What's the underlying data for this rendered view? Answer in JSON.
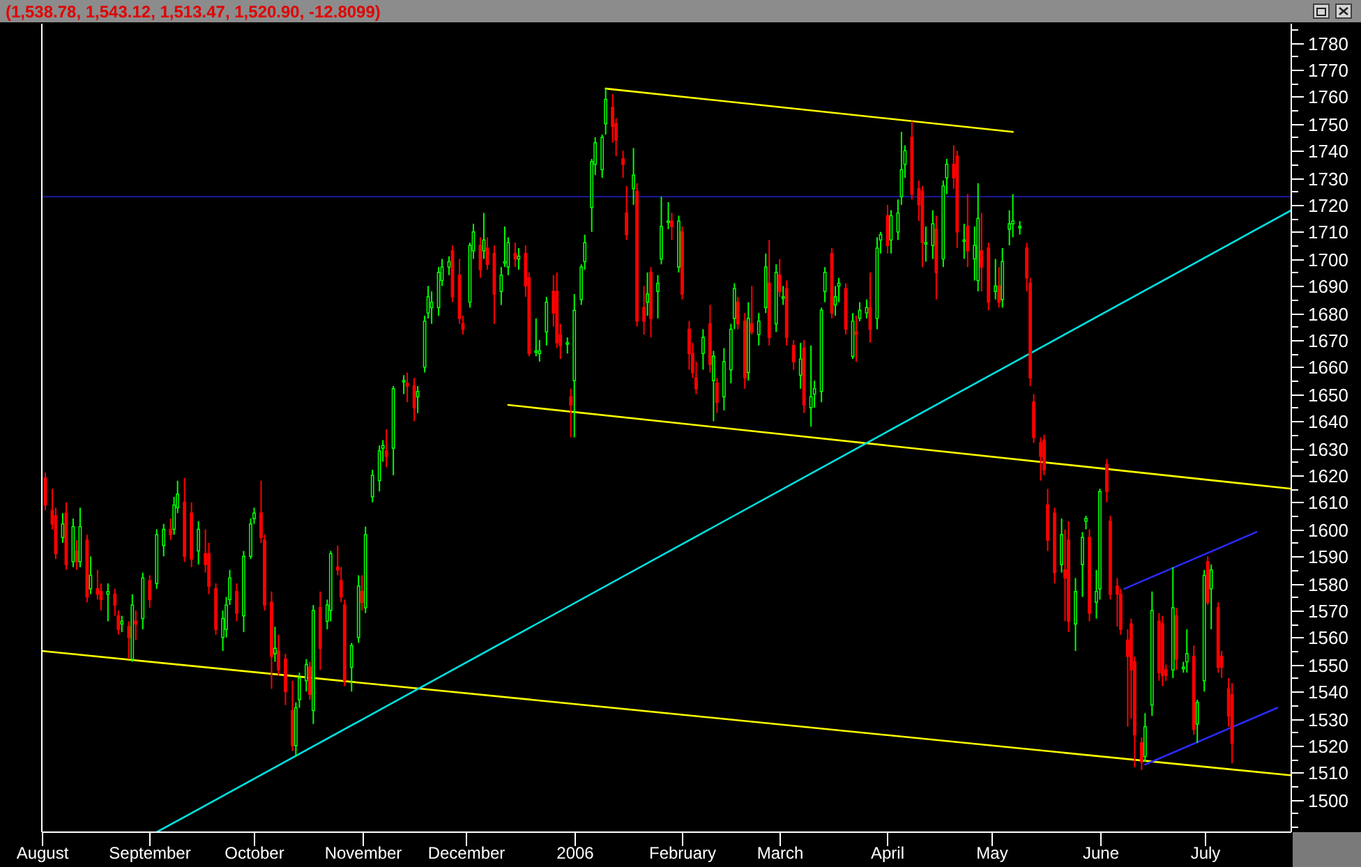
{
  "chart_data": {
    "type": "candlestick",
    "title": "(1,538.78, 1,543.12, 1,513.47, 1,520.90, -12.8099)",
    "xlim": [
      "2005-08-01",
      "2006-07-26"
    ],
    "xticks": [
      {
        "value": "2005-08-01",
        "label": "August"
      },
      {
        "value": "2005-09-01",
        "label": "September"
      },
      {
        "value": "2005-10-01",
        "label": "October"
      },
      {
        "value": "2005-11-01",
        "label": "November"
      },
      {
        "value": "2005-12-01",
        "label": "December"
      },
      {
        "value": "2006-01-01",
        "label": "2006"
      },
      {
        "value": "2006-02-01",
        "label": "February"
      },
      {
        "value": "2006-03-01",
        "label": "March"
      },
      {
        "value": "2006-04-01",
        "label": "April"
      },
      {
        "value": "2006-05-01",
        "label": "May"
      },
      {
        "value": "2006-06-01",
        "label": "June"
      },
      {
        "value": "2006-07-01",
        "label": "July"
      }
    ],
    "ylim": [
      1488,
      1787
    ],
    "yticks": [
      {
        "value": 1490,
        "label": null
      },
      {
        "value": 1495,
        "label": null
      },
      1500,
      {
        "value": 1505,
        "label": null
      },
      1510,
      {
        "value": 1515,
        "label": null
      },
      1520,
      {
        "value": 1525,
        "label": null
      },
      1530,
      {
        "value": 1535,
        "label": null
      },
      1540,
      {
        "value": 1545,
        "label": null
      },
      1550,
      {
        "value": 1555,
        "label": null
      },
      1560,
      {
        "value": 1565,
        "label": null
      },
      1570,
      {
        "value": 1575,
        "label": null
      },
      1580,
      {
        "value": 1585,
        "label": null
      },
      1590,
      {
        "value": 1595,
        "label": null
      },
      1600,
      {
        "value": 1605,
        "label": null
      },
      1610,
      {
        "value": 1615,
        "label": null
      },
      1620,
      {
        "value": 1625,
        "label": null
      },
      1630,
      {
        "value": 1635,
        "label": null
      },
      1640,
      {
        "value": 1645,
        "label": null
      },
      1650,
      {
        "value": 1655,
        "label": null
      },
      1660,
      {
        "value": 1665,
        "label": null
      },
      1670,
      {
        "value": 1675,
        "label": null
      },
      1680,
      {
        "value": 1685,
        "label": null
      },
      1690,
      {
        "value": 1695,
        "label": null
      },
      1700,
      {
        "value": 1705,
        "label": null
      },
      1710,
      {
        "value": 1715,
        "label": null
      },
      1720,
      {
        "value": 1725,
        "label": null
      },
      1730,
      {
        "value": 1735,
        "label": null
      },
      1740,
      {
        "value": 1745,
        "label": null
      },
      1750,
      {
        "value": 1755,
        "label": null
      },
      1760,
      {
        "value": 1765,
        "label": null
      },
      1770,
      {
        "value": 1775,
        "label": null
      },
      1780,
      {
        "value": 1785,
        "label": null
      }
    ],
    "x": [
      "2005-08-02",
      "2005-08-04",
      "2005-08-05",
      "2005-08-07",
      "2005-08-08",
      "2005-08-10",
      "2005-08-11",
      "2005-08-12",
      "2005-08-14",
      "2005-08-15",
      "2005-08-17",
      "2005-08-18",
      "2005-08-20",
      "2005-08-22",
      "2005-08-23",
      "2005-08-24",
      "2005-08-26",
      "2005-08-27",
      "2005-08-28",
      "2005-08-30",
      "2005-09-01",
      "2005-09-03",
      "2005-09-05",
      "2005-09-07",
      "2005-09-08",
      "2005-09-09",
      "2005-09-11",
      "2005-09-13",
      "2005-09-15",
      "2005-09-17",
      "2005-09-18",
      "2005-09-20",
      "2005-09-22",
      "2005-09-23",
      "2005-09-24",
      "2005-09-26",
      "2005-09-28",
      "2005-09-30",
      "2005-10-01",
      "2005-10-03",
      "2005-10-04",
      "2005-10-06",
      "2005-10-07",
      "2005-10-08",
      "2005-10-10",
      "2005-10-12",
      "2005-10-13",
      "2005-10-14",
      "2005-10-16",
      "2005-10-17",
      "2005-10-18",
      "2005-10-20",
      "2005-10-22",
      "2005-10-23",
      "2005-10-25",
      "2005-10-26",
      "2005-10-27",
      "2005-10-29",
      "2005-10-31",
      "2005-11-01",
      "2005-11-02",
      "2005-11-04",
      "2005-11-06",
      "2005-11-07",
      "2005-11-08",
      "2005-11-10",
      "2005-11-13",
      "2005-11-14",
      "2005-11-16",
      "2005-11-17",
      "2005-11-19",
      "2005-11-20",
      "2005-11-21",
      "2005-11-23",
      "2005-11-24",
      "2005-11-26",
      "2005-11-27",
      "2005-11-29",
      "2005-11-30",
      "2005-12-02",
      "2005-12-03",
      "2005-12-05",
      "2005-12-06",
      "2005-12-07",
      "2005-12-09",
      "2005-12-11",
      "2005-12-12",
      "2005-12-13",
      "2005-12-15",
      "2005-12-16",
      "2005-12-18",
      "2005-12-19",
      "2005-12-21",
      "2005-12-22",
      "2005-12-24",
      "2005-12-26",
      "2005-12-27",
      "2005-12-28",
      "2005-12-30",
      "2005-12-31",
      "2006-01-01",
      "2006-01-03",
      "2006-01-04",
      "2006-01-06",
      "2006-01-07",
      "2006-01-09",
      "2006-01-10",
      "2006-01-12",
      "2006-01-13",
      "2006-01-15",
      "2006-01-16",
      "2006-01-18",
      "2006-01-19",
      "2006-01-21",
      "2006-01-22",
      "2006-01-23",
      "2006-01-25",
      "2006-01-26",
      "2006-01-28",
      "2006-01-29",
      "2006-01-31",
      "2006-02-01",
      "2006-02-03",
      "2006-02-04",
      "2006-02-05",
      "2006-02-07",
      "2006-02-09",
      "2006-02-10",
      "2006-02-11",
      "2006-02-13",
      "2006-02-15",
      "2006-02-16",
      "2006-02-17",
      "2006-02-19",
      "2006-02-20",
      "2006-02-21",
      "2006-02-23",
      "2006-02-25",
      "2006-02-26",
      "2006-02-28",
      "2006-03-01",
      "2006-03-02",
      "2006-03-03",
      "2006-03-05",
      "2006-03-07",
      "2006-03-08",
      "2006-03-10",
      "2006-03-11",
      "2006-03-13",
      "2006-03-14",
      "2006-03-16",
      "2006-03-17",
      "2006-03-18",
      "2006-03-20",
      "2006-03-22",
      "2006-03-23",
      "2006-03-24",
      "2006-03-26",
      "2006-03-27",
      "2006-03-29",
      "2006-03-30",
      "2006-04-01",
      "2006-04-02",
      "2006-04-04",
      "2006-04-05",
      "2006-04-06",
      "2006-04-08",
      "2006-04-10",
      "2006-04-11",
      "2006-04-12",
      "2006-04-14",
      "2006-04-15",
      "2006-04-17",
      "2006-04-18",
      "2006-04-20",
      "2006-04-21",
      "2006-04-23",
      "2006-04-24",
      "2006-04-26",
      "2006-04-27",
      "2006-04-28",
      "2006-04-30",
      "2006-05-02",
      "2006-05-03",
      "2006-05-04",
      "2006-05-06",
      "2006-05-07",
      "2006-05-09",
      "2006-05-11",
      "2006-05-12",
      "2006-05-13",
      "2006-05-15",
      "2006-05-16",
      "2006-05-17",
      "2006-05-19",
      "2006-05-21",
      "2006-05-22",
      "2006-05-23",
      "2006-05-25",
      "2006-05-27",
      "2006-05-28",
      "2006-05-29",
      "2006-05-31",
      "2006-06-01",
      "2006-06-03",
      "2006-06-04",
      "2006-06-06",
      "2006-06-07",
      "2006-06-09",
      "2006-06-10",
      "2006-06-11",
      "2006-06-13",
      "2006-06-14",
      "2006-06-16",
      "2006-06-18",
      "2006-06-19",
      "2006-06-20",
      "2006-06-22",
      "2006-06-23",
      "2006-06-25",
      "2006-06-26",
      "2006-06-28",
      "2006-06-29",
      "2006-07-01",
      "2006-07-02",
      "2006-07-03",
      "2006-07-05",
      "2006-07-06",
      "2006-07-08",
      "2006-07-09"
    ],
    "ohlc": [
      [
        1619,
        1621,
        1607,
        1609
      ],
      [
        1607,
        1615,
        1600,
        1602
      ],
      [
        1605,
        1608,
        1589,
        1591
      ],
      [
        1597,
        1606,
        1595,
        1602
      ],
      [
        1606,
        1610,
        1585,
        1587
      ],
      [
        1588,
        1604,
        1586,
        1601
      ],
      [
        1592,
        1596,
        1585,
        1588
      ],
      [
        1588,
        1608,
        1586,
        1601
      ],
      [
        1596,
        1598,
        1573,
        1575
      ],
      [
        1578,
        1590,
        1576,
        1583
      ],
      [
        1578,
        1585,
        1574,
        1576
      ],
      [
        1577,
        1580,
        1570,
        1574
      ],
      [
        1576,
        1580,
        1566,
        1577
      ],
      [
        1576,
        1578,
        1568,
        1572
      ],
      [
        1568,
        1570,
        1561,
        1563
      ],
      [
        1565,
        1568,
        1562,
        1566
      ],
      [
        1564,
        1566,
        1552,
        1560
      ],
      [
        1552,
        1576,
        1551,
        1572
      ],
      [
        1566,
        1570,
        1559,
        1565
      ],
      [
        1567,
        1584,
        1563,
        1582
      ],
      [
        1581,
        1583,
        1571,
        1574
      ],
      [
        1580,
        1600,
        1578,
        1598
      ],
      [
        1594,
        1602,
        1590,
        1600
      ],
      [
        1600,
        1604,
        1596,
        1598
      ],
      [
        1600,
        1612,
        1598,
        1609
      ],
      [
        1608,
        1618,
        1606,
        1613
      ],
      [
        1610,
        1619,
        1588,
        1590
      ],
      [
        1606,
        1610,
        1586,
        1589
      ],
      [
        1592,
        1603,
        1587,
        1600
      ],
      [
        1591,
        1600,
        1584,
        1587
      ],
      [
        1591,
        1595,
        1576,
        1579
      ],
      [
        1578,
        1580,
        1561,
        1563
      ],
      [
        1560,
        1570,
        1555,
        1567
      ],
      [
        1563,
        1575,
        1560,
        1572
      ],
      [
        1574,
        1585,
        1572,
        1582
      ],
      [
        1577,
        1580,
        1566,
        1569
      ],
      [
        1568,
        1592,
        1562,
        1590
      ],
      [
        1590,
        1604,
        1589,
        1602
      ],
      [
        1604,
        1608,
        1602,
        1606
      ],
      [
        1606,
        1618,
        1595,
        1597
      ],
      [
        1596,
        1598,
        1570,
        1572
      ],
      [
        1573,
        1577,
        1541,
        1553
      ],
      [
        1554,
        1564,
        1551,
        1556
      ],
      [
        1555,
        1561,
        1546,
        1548
      ],
      [
        1552,
        1554,
        1535,
        1540
      ],
      [
        1533,
        1544,
        1518,
        1520
      ],
      [
        1520,
        1536,
        1516,
        1534
      ],
      [
        1537,
        1547,
        1534,
        1545
      ],
      [
        1544,
        1552,
        1540,
        1550
      ],
      [
        1549,
        1551,
        1537,
        1539
      ],
      [
        1533,
        1572,
        1528,
        1570
      ],
      [
        1571,
        1577,
        1548,
        1556
      ],
      [
        1566,
        1574,
        1563,
        1572
      ],
      [
        1570,
        1592,
        1566,
        1591
      ],
      [
        1586,
        1594,
        1583,
        1585
      ],
      [
        1581,
        1586,
        1573,
        1575
      ],
      [
        1572,
        1574,
        1542,
        1544
      ],
      [
        1549,
        1558,
        1540,
        1557
      ],
      [
        1560,
        1583,
        1558,
        1579
      ],
      [
        1577,
        1583,
        1570,
        1573
      ],
      [
        1571,
        1601,
        1569,
        1598
      ],
      [
        1612,
        1622,
        1610,
        1620
      ],
      [
        1618,
        1631,
        1614,
        1629
      ],
      [
        1630,
        1633,
        1625,
        1631
      ],
      [
        1629,
        1637,
        1623,
        1627
      ],
      [
        1630,
        1653,
        1620,
        1652
      ],
      [
        1655,
        1657,
        1650,
        1655
      ],
      [
        1654,
        1658,
        1647,
        1653
      ],
      [
        1653,
        1656,
        1640,
        1645
      ],
      [
        1649,
        1653,
        1643,
        1651
      ],
      [
        1660,
        1679,
        1658,
        1677
      ],
      [
        1680,
        1690,
        1678,
        1686
      ],
      [
        1682,
        1688,
        1676,
        1684
      ],
      [
        1682,
        1697,
        1679,
        1695
      ],
      [
        1692,
        1700,
        1690,
        1697
      ],
      [
        1697,
        1701,
        1694,
        1699
      ],
      [
        1703,
        1705,
        1684,
        1686
      ],
      [
        1694,
        1700,
        1676,
        1678
      ],
      [
        1676,
        1679,
        1672,
        1674
      ],
      [
        1684,
        1706,
        1682,
        1705
      ],
      [
        1703,
        1713,
        1700,
        1710
      ],
      [
        1705,
        1708,
        1693,
        1696
      ],
      [
        1703,
        1717,
        1700,
        1707
      ],
      [
        1704,
        1708,
        1696,
        1698
      ],
      [
        1702,
        1705,
        1676,
        1687
      ],
      [
        1688,
        1697,
        1683,
        1694
      ],
      [
        1699,
        1712,
        1697,
        1699
      ],
      [
        1697,
        1708,
        1694,
        1706
      ],
      [
        1702,
        1706,
        1697,
        1700
      ],
      [
        1700,
        1704,
        1696,
        1701
      ],
      [
        1702,
        1705,
        1686,
        1690
      ],
      [
        1693,
        1695,
        1664,
        1665
      ],
      [
        1666,
        1678,
        1664,
        1666
      ],
      [
        1665,
        1670,
        1662,
        1666
      ],
      [
        1673,
        1686,
        1668,
        1684
      ],
      [
        1688,
        1694,
        1675,
        1680
      ],
      [
        1688,
        1695,
        1667,
        1669
      ],
      [
        1672,
        1676,
        1663,
        1668
      ],
      [
        1669,
        1671,
        1665,
        1669
      ],
      [
        1649,
        1652,
        1634,
        1646
      ],
      [
        1655,
        1687,
        1634,
        1681
      ],
      [
        1685,
        1698,
        1683,
        1697
      ],
      [
        1699,
        1709,
        1696,
        1706
      ],
      [
        1719,
        1737,
        1710,
        1736
      ],
      [
        1735,
        1745,
        1731,
        1743
      ],
      [
        1733,
        1746,
        1730,
        1745
      ],
      [
        1750,
        1763,
        1746,
        1759
      ],
      [
        1756,
        1761,
        1743,
        1749
      ],
      [
        1750,
        1752,
        1738,
        1744
      ],
      [
        1737,
        1740,
        1730,
        1735
      ],
      [
        1717,
        1727,
        1707,
        1709
      ],
      [
        1726,
        1741,
        1720,
        1731
      ],
      [
        1725,
        1728,
        1675,
        1677
      ],
      [
        1682,
        1690,
        1672,
        1677
      ],
      [
        1684,
        1695,
        1679,
        1687
      ],
      [
        1695,
        1697,
        1671,
        1678
      ],
      [
        1688,
        1694,
        1678,
        1691
      ],
      [
        1700,
        1723,
        1698,
        1712
      ],
      [
        1714,
        1721,
        1711,
        1714
      ],
      [
        1714,
        1717,
        1707,
        1712
      ],
      [
        1697,
        1716,
        1695,
        1714
      ],
      [
        1710,
        1712,
        1685,
        1687
      ],
      [
        1674,
        1677,
        1659,
        1665
      ],
      [
        1665,
        1669,
        1656,
        1658
      ],
      [
        1656,
        1662,
        1650,
        1652
      ],
      [
        1665,
        1674,
        1659,
        1671
      ],
      [
        1676,
        1683,
        1658,
        1661
      ],
      [
        1655,
        1666,
        1640,
        1664
      ],
      [
        1654,
        1656,
        1643,
        1647
      ],
      [
        1649,
        1667,
        1644,
        1662
      ],
      [
        1659,
        1676,
        1654,
        1674
      ],
      [
        1678,
        1691,
        1674,
        1689
      ],
      [
        1684,
        1686,
        1674,
        1676
      ],
      [
        1677,
        1680,
        1652,
        1656
      ],
      [
        1658,
        1684,
        1655,
        1678
      ],
      [
        1676,
        1690,
        1672,
        1673
      ],
      [
        1672,
        1680,
        1668,
        1677
      ],
      [
        1682,
        1702,
        1680,
        1697
      ],
      [
        1691,
        1707,
        1668,
        1671
      ],
      [
        1676,
        1698,
        1673,
        1695
      ],
      [
        1694,
        1700,
        1686,
        1688
      ],
      [
        1686,
        1690,
        1683,
        1686
      ],
      [
        1689,
        1692,
        1668,
        1671
      ],
      [
        1668,
        1670,
        1659,
        1662
      ],
      [
        1657,
        1669,
        1652,
        1663
      ],
      [
        1667,
        1670,
        1643,
        1646
      ],
      [
        1645,
        1668,
        1638,
        1649
      ],
      [
        1650,
        1655,
        1645,
        1652
      ],
      [
        1651,
        1682,
        1647,
        1681
      ],
      [
        1688,
        1697,
        1684,
        1695
      ],
      [
        1702,
        1704,
        1678,
        1680
      ],
      [
        1683,
        1690,
        1679,
        1686
      ],
      [
        1690,
        1693,
        1684,
        1691
      ],
      [
        1689,
        1691,
        1672,
        1674
      ],
      [
        1664,
        1680,
        1663,
        1677
      ],
      [
        1673,
        1679,
        1662,
        1672
      ],
      [
        1678,
        1684,
        1677,
        1681
      ],
      [
        1680,
        1685,
        1678,
        1682
      ],
      [
        1682,
        1695,
        1669,
        1674
      ],
      [
        1678,
        1708,
        1674,
        1704
      ],
      [
        1707,
        1710,
        1702,
        1709
      ],
      [
        1716,
        1720,
        1702,
        1705
      ],
      [
        1707,
        1718,
        1702,
        1716
      ],
      [
        1710,
        1722,
        1707,
        1717
      ],
      [
        1723,
        1747,
        1720,
        1733
      ],
      [
        1735,
        1742,
        1730,
        1740
      ],
      [
        1745,
        1751,
        1722,
        1724
      ],
      [
        1726,
        1729,
        1714,
        1720
      ],
      [
        1725,
        1727,
        1697,
        1706
      ],
      [
        1706,
        1712,
        1699,
        1706
      ],
      [
        1705,
        1718,
        1700,
        1713
      ],
      [
        1711,
        1716,
        1685,
        1695
      ],
      [
        1700,
        1729,
        1697,
        1727
      ],
      [
        1730,
        1737,
        1724,
        1735
      ],
      [
        1735,
        1742,
        1726,
        1730
      ],
      [
        1738,
        1740,
        1704,
        1710
      ],
      [
        1707,
        1713,
        1700,
        1707
      ],
      [
        1712,
        1724,
        1697,
        1703
      ],
      [
        1700,
        1712,
        1692,
        1705
      ],
      [
        1692,
        1728,
        1688,
        1715
      ],
      [
        1703,
        1717,
        1688,
        1697
      ],
      [
        1704,
        1706,
        1681,
        1684
      ],
      [
        1688,
        1700,
        1685,
        1690
      ],
      [
        1690,
        1697,
        1682,
        1684
      ],
      [
        1685,
        1704,
        1682,
        1699
      ],
      [
        1711,
        1718,
        1705,
        1713
      ],
      [
        1713,
        1724,
        1708,
        1714
      ],
      [
        1712,
        1714,
        1709,
        1712
      ],
      [
        1704,
        1706,
        1688,
        1693
      ],
      [
        1691,
        1693,
        1653,
        1656
      ],
      [
        1647,
        1650,
        1632,
        1634
      ],
      [
        1632,
        1634,
        1618,
        1627
      ],
      [
        1633,
        1635,
        1620,
        1622
      ],
      [
        1609,
        1615,
        1592,
        1596
      ],
      [
        1606,
        1608,
        1580,
        1584
      ],
      [
        1587,
        1604,
        1584,
        1598
      ],
      [
        1585,
        1600,
        1566,
        1582
      ],
      [
        1596,
        1603,
        1562,
        1566
      ],
      [
        1565,
        1582,
        1555,
        1577
      ],
      [
        1587,
        1599,
        1575,
        1597
      ],
      [
        1603,
        1605,
        1600,
        1604
      ],
      [
        1597,
        1600,
        1566,
        1569
      ],
      [
        1573,
        1585,
        1567,
        1577
      ],
      [
        1578,
        1615,
        1574,
        1614
      ],
      [
        1624,
        1626,
        1610,
        1614
      ],
      [
        1603,
        1605,
        1574,
        1576
      ],
      [
        1579,
        1582,
        1564,
        1576
      ],
      [
        1576,
        1578,
        1561,
        1563
      ],
      [
        1559,
        1563,
        1527,
        1553
      ],
      [
        1565,
        1567,
        1530,
        1548
      ],
      [
        1551,
        1553,
        1512,
        1524
      ],
      [
        1521,
        1523,
        1511,
        1514
      ],
      [
        1516,
        1532,
        1514,
        1527
      ],
      [
        1535,
        1577,
        1531,
        1570
      ],
      [
        1566,
        1569,
        1544,
        1547
      ],
      [
        1565,
        1568,
        1542,
        1546
      ],
      [
        1548,
        1550,
        1544,
        1546
      ],
      [
        1548,
        1586,
        1545,
        1571
      ],
      [
        1568,
        1571,
        1548,
        1552
      ],
      [
        1549,
        1551,
        1547,
        1549
      ],
      [
        1551,
        1563,
        1547,
        1554
      ],
      [
        1553,
        1557,
        1524,
        1526
      ],
      [
        1528,
        1537,
        1521,
        1536
      ],
      [
        1544,
        1585,
        1540,
        1583
      ],
      [
        1588,
        1590,
        1572,
        1573
      ],
      [
        1578,
        1587,
        1563,
        1585
      ],
      [
        1571,
        1573,
        1547,
        1549
      ],
      [
        1553,
        1555,
        1545,
        1549
      ],
      [
        1541,
        1545,
        1527,
        1531
      ],
      [
        1538.78,
        1543.12,
        1513.47,
        1520.9
      ]
    ],
    "series": [
      {
        "type": "line",
        "color": "#ffff00",
        "x": [
          "2005-08-01",
          "2006-07-26"
        ],
        "values": [
          1555,
          1509
        ]
      },
      {
        "type": "line",
        "color": "#ffff00",
        "x": [
          "2005-12-13",
          "2006-07-26"
        ],
        "values": [
          1646,
          1615
        ]
      },
      {
        "type": "line",
        "color": "#ffff00",
        "x": [
          "2006-01-10",
          "2006-05-07"
        ],
        "values": [
          1763,
          1747
        ]
      },
      {
        "type": "line",
        "color": "#00e0e0",
        "x": [
          "2005-09-03",
          "2006-07-26"
        ],
        "values": [
          1488,
          1718
        ]
      },
      {
        "type": "line",
        "color": "#2a2aff",
        "x": [
          "2006-06-08",
          "2006-07-16"
        ],
        "values": [
          1578,
          1599
        ]
      },
      {
        "type": "line",
        "color": "#2a2aff",
        "x": [
          "2006-06-14",
          "2006-07-22"
        ],
        "values": [
          1513,
          1534
        ]
      }
    ],
    "ref_lines": [
      {
        "axis": "y",
        "value": 1723,
        "color": "#1a1aa0"
      }
    ],
    "grid": false
  }
}
